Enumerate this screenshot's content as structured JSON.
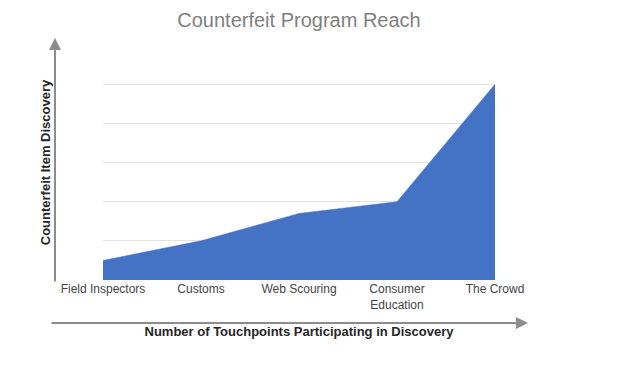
{
  "chart_data": {
    "type": "area",
    "title": "Counterfeit Program Reach",
    "x_label": "Number of Touchpoints Participating in Discovery",
    "y_label": "Counterfeit Item Discovery",
    "categories": [
      "Field Inspectors",
      "Customs",
      "Web Scouring",
      "Consumer\nEducation",
      "The Crowd"
    ],
    "values": [
      0.5,
      1,
      1.7,
      2,
      5
    ],
    "color": "#4472c4",
    "ylim": [
      0,
      6
    ],
    "yticks": [
      0,
      1,
      2,
      3,
      4,
      5,
      6
    ],
    "grid": true,
    "tick_labels": "x"
  }
}
